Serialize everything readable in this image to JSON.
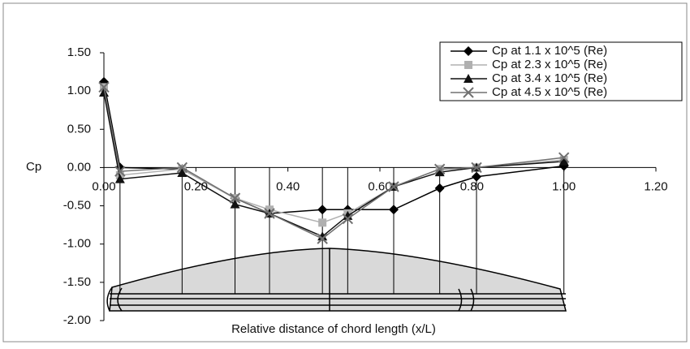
{
  "chart_data": {
    "type": "line",
    "x_label": "Relative distance of chord length (x/L)",
    "y_label": "Cp",
    "x": [
      0.0,
      0.035,
      0.17,
      0.285,
      0.36,
      0.475,
      0.53,
      0.63,
      0.73,
      0.81,
      1.0
    ],
    "series": [
      {
        "name": "Cp at 1.1 x 10^5 (Re)",
        "color": "#000000",
        "marker": "diamond",
        "values": [
          1.12,
          0.0,
          -0.02,
          -0.4,
          -0.6,
          -0.55,
          -0.55,
          -0.55,
          -0.27,
          -0.12,
          0.02
        ]
      },
      {
        "name": "Cp at 2.3 x 10^5 (Re)",
        "color": "#b0b0b0",
        "marker": "square",
        "values": [
          1.05,
          -0.1,
          -0.02,
          -0.4,
          -0.55,
          -0.72,
          -0.6,
          -0.25,
          -0.02,
          0.0,
          0.1
        ]
      },
      {
        "name": "Cp at 3.4 x 10^5 (Re)",
        "color": "#111111",
        "marker": "triangle",
        "values": [
          0.98,
          -0.15,
          -0.07,
          -0.48,
          -0.6,
          -0.9,
          -0.63,
          -0.25,
          -0.06,
          0.0,
          0.08
        ]
      },
      {
        "name": "Cp at 4.5 x 10^5 (Re)",
        "color": "#707070",
        "marker": "x",
        "values": [
          1.05,
          -0.05,
          0.0,
          -0.4,
          -0.6,
          -0.93,
          -0.67,
          -0.25,
          -0.02,
          0.0,
          0.13
        ]
      }
    ],
    "xlim": [
      0,
      1.2
    ],
    "ylim": [
      -2,
      1.5
    ],
    "xticks": [
      {
        "value": 0,
        "label": "0.00"
      },
      {
        "value": 0.2,
        "label": "0.20"
      },
      {
        "value": 0.4,
        "label": "0.40"
      },
      {
        "value": 0.6,
        "label": "0.60"
      },
      {
        "value": 0.8,
        "label": "0.80"
      },
      {
        "value": 1.0,
        "label": "1.00"
      },
      {
        "value": 1.2,
        "label": "1.20"
      }
    ],
    "yticks": [
      {
        "value": 1.5,
        "label": "1.50"
      },
      {
        "value": 1.0,
        "label": "1.00"
      },
      {
        "value": 0.5,
        "label": "0.50"
      },
      {
        "value": 0,
        "label": "0.00"
      },
      {
        "value": -0.5,
        "label": "-0.50"
      },
      {
        "value": -1.0,
        "label": "-1.00"
      },
      {
        "value": -1.5,
        "label": "-1.50"
      },
      {
        "value": -2.0,
        "label": "-2.00"
      }
    ],
    "grid": false,
    "legend": "top-right"
  }
}
